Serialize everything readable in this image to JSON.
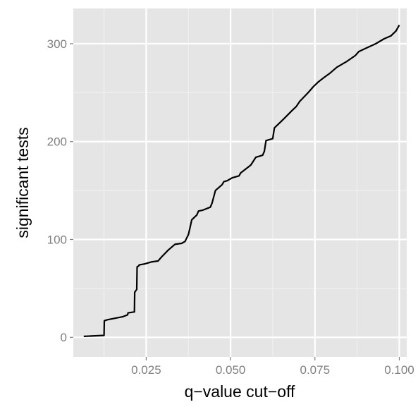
{
  "chart_data": {
    "type": "line",
    "xlabel": "q−value cut−off",
    "ylabel": "significant tests",
    "xlim": [
      0.0034,
      0.1022
    ],
    "ylim": [
      -20,
      336
    ],
    "grid": true,
    "background": "#E5E5E5",
    "grid_major_color": "#FFFFFF",
    "line_color": "#000000",
    "x_ticks": [
      {
        "value": 0.025,
        "label": "0.025"
      },
      {
        "value": 0.05,
        "label": "0.050"
      },
      {
        "value": 0.075,
        "label": "0.075"
      },
      {
        "value": 0.1,
        "label": "0.100"
      }
    ],
    "y_ticks": [
      {
        "value": 0,
        "label": "0"
      },
      {
        "value": 100,
        "label": "100"
      },
      {
        "value": 200,
        "label": "200"
      },
      {
        "value": 300,
        "label": "300"
      }
    ],
    "x": [
      0.0065,
      0.0125,
      0.0126,
      0.0135,
      0.018,
      0.0195,
      0.0196,
      0.0215,
      0.0216,
      0.0222,
      0.0223,
      0.0228,
      0.0229,
      0.0245,
      0.0265,
      0.0285,
      0.0295,
      0.0315,
      0.0335,
      0.0355,
      0.0365,
      0.0375,
      0.038,
      0.0385,
      0.04,
      0.0405,
      0.0418,
      0.044,
      0.0445,
      0.0455,
      0.0475,
      0.048,
      0.049,
      0.05,
      0.0505,
      0.0525,
      0.053,
      0.0545,
      0.056,
      0.0575,
      0.0595,
      0.06,
      0.0605,
      0.0625,
      0.063,
      0.0645,
      0.066,
      0.068,
      0.0695,
      0.0705,
      0.073,
      0.0745,
      0.076,
      0.0775,
      0.0795,
      0.0815,
      0.0845,
      0.087,
      0.088,
      0.0905,
      0.093,
      0.0955,
      0.0975,
      0.099,
      0.1
    ],
    "y": [
      1,
      2,
      17,
      18,
      21,
      23,
      25,
      26,
      46,
      49,
      72,
      73,
      74,
      75,
      77,
      78,
      82,
      89,
      95,
      96,
      98,
      105,
      112,
      120,
      125,
      129,
      130,
      133,
      137,
      150,
      156,
      159,
      160,
      162,
      163,
      165,
      168,
      172,
      176,
      184,
      186,
      190,
      201,
      203,
      214,
      219,
      224,
      231,
      236,
      241,
      250,
      256,
      261,
      265,
      270,
      276,
      282,
      288,
      292,
      296,
      300,
      305,
      308,
      313,
      319
    ]
  }
}
